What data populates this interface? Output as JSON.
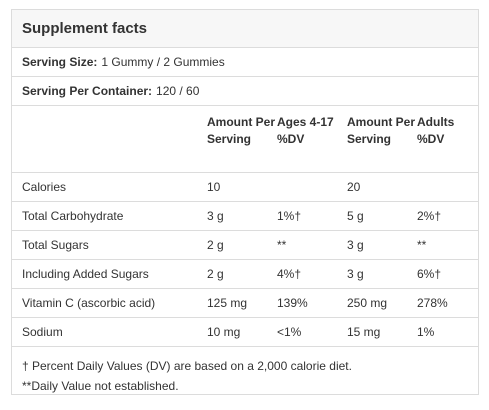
{
  "title": "Supplement facts",
  "serving_size": {
    "label": "Serving Size:",
    "value": "1 Gummy / 2 Gummies"
  },
  "servings_per_container": {
    "label": "Serving Per Container:",
    "value": "120 / 60"
  },
  "table": {
    "headers": [
      "",
      "Amount Per Serving",
      "Ages 4-17 %DV",
      "Amount Per Serving",
      "Adults %DV"
    ],
    "rows": [
      [
        "Calories",
        "10",
        "",
        "20",
        ""
      ],
      [
        "Total Carbohydrate",
        "3 g",
        "1%†",
        "5 g",
        "2%†"
      ],
      [
        "Total Sugars",
        "2 g",
        "**",
        "3 g",
        "**"
      ],
      [
        "Including Added Sugars",
        "2 g",
        "4%†",
        "3 g",
        "6%†"
      ],
      [
        "Vitamin C (ascorbic acid)",
        "125 mg",
        "139%",
        "250 mg",
        "278%"
      ],
      [
        "Sodium",
        "10 mg",
        "<1%",
        "15 mg",
        "1%"
      ]
    ]
  },
  "footnotes": [
    "† Percent Daily Values (DV) are based on a 2,000 calorie diet.",
    "**Daily Value not established."
  ]
}
